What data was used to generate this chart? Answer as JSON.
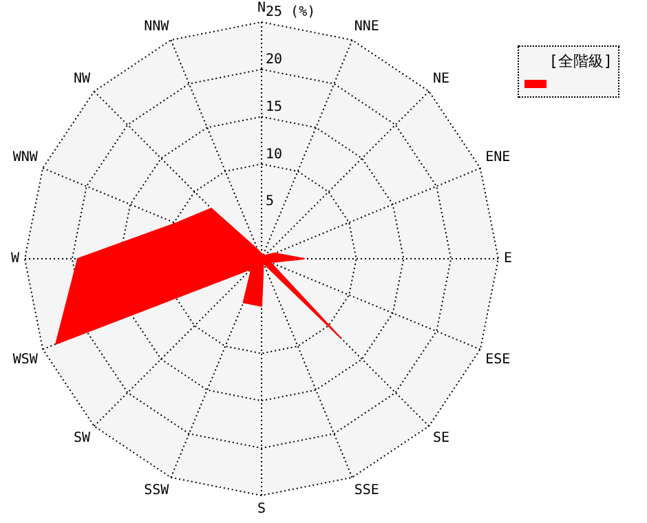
{
  "chart_data": {
    "type": "radar",
    "categories": [
      "N",
      "NNE",
      "NE",
      "ENE",
      "E",
      "ESE",
      "SE",
      "SSE",
      "S",
      "SSW",
      "SW",
      "WSW",
      "W",
      "WNW",
      "NW",
      "NNW"
    ],
    "series": [
      {
        "name": "[全階級]",
        "color": "#ff0000",
        "values": [
          0.5,
          0.5,
          0.5,
          1.5,
          4.5,
          1,
          11.8,
          0.5,
          5,
          5,
          1.5,
          23.5,
          19.4,
          9.8,
          7.5,
          1
        ]
      }
    ],
    "ylim": [
      0,
      25
    ],
    "yticks": [
      5,
      10,
      15,
      20,
      {
        "value": 25,
        "label": "25 (%)"
      }
    ],
    "grid": true,
    "legend": "top right",
    "marker": "none",
    "line_style": "solid"
  }
}
